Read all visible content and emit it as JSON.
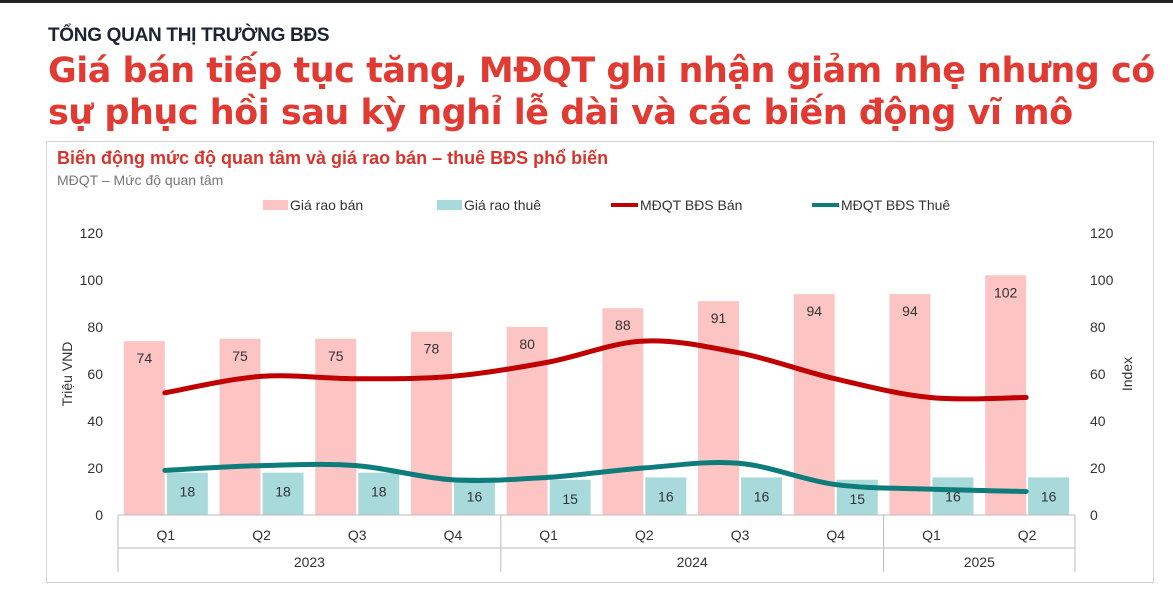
{
  "header": {
    "kicker": "TỔNG QUAN THỊ TRƯỜNG BĐS",
    "headline": "Giá bán tiếp tục tăng, MĐQT ghi nhận giảm nhẹ nhưng có sự phục hồi sau kỳ nghỉ lễ dài và các biến động vĩ mô"
  },
  "chart_data": {
    "type": "bar",
    "title": "Biến động mức độ quan tâm và giá rao bán – thuê BĐS phổ biến",
    "subtitle": "MĐQT – Mức độ quan tâm",
    "ylabel": "Triệu VND",
    "y2label": "Index",
    "ylim": [
      0,
      120
    ],
    "y2lim": [
      0,
      120
    ],
    "yticks": [
      "0",
      "20",
      "40",
      "60",
      "80",
      "100",
      "120"
    ],
    "categories": [
      "Q1",
      "Q2",
      "Q3",
      "Q4",
      "Q1",
      "Q2",
      "Q3",
      "Q4",
      "Q1",
      "Q2"
    ],
    "groups": [
      {
        "label": "2023",
        "count": 4
      },
      {
        "label": "2024",
        "count": 4
      },
      {
        "label": "2025",
        "count": 2
      }
    ],
    "legend_position": "top",
    "series": [
      {
        "name": "Giá rao bán",
        "type": "bar",
        "color": "#fcc5c3",
        "values": [
          74,
          75,
          75,
          78,
          80,
          88,
          91,
          94,
          94,
          102
        ]
      },
      {
        "name": "Giá rao thuê",
        "type": "bar",
        "color": "#a8dadc",
        "values": [
          18,
          18,
          18,
          16,
          15,
          16,
          16,
          15,
          16,
          16
        ]
      },
      {
        "name": "MĐQT BĐS Bán",
        "type": "line",
        "color": "#c00000",
        "values": [
          52,
          59,
          58,
          59,
          65,
          74,
          69,
          58,
          50,
          50
        ]
      },
      {
        "name": "MĐQT BĐS Thuê",
        "type": "line",
        "color": "#0e7c7b",
        "values": [
          19,
          21,
          21,
          15,
          16,
          20,
          22,
          13,
          11,
          10
        ]
      }
    ]
  }
}
